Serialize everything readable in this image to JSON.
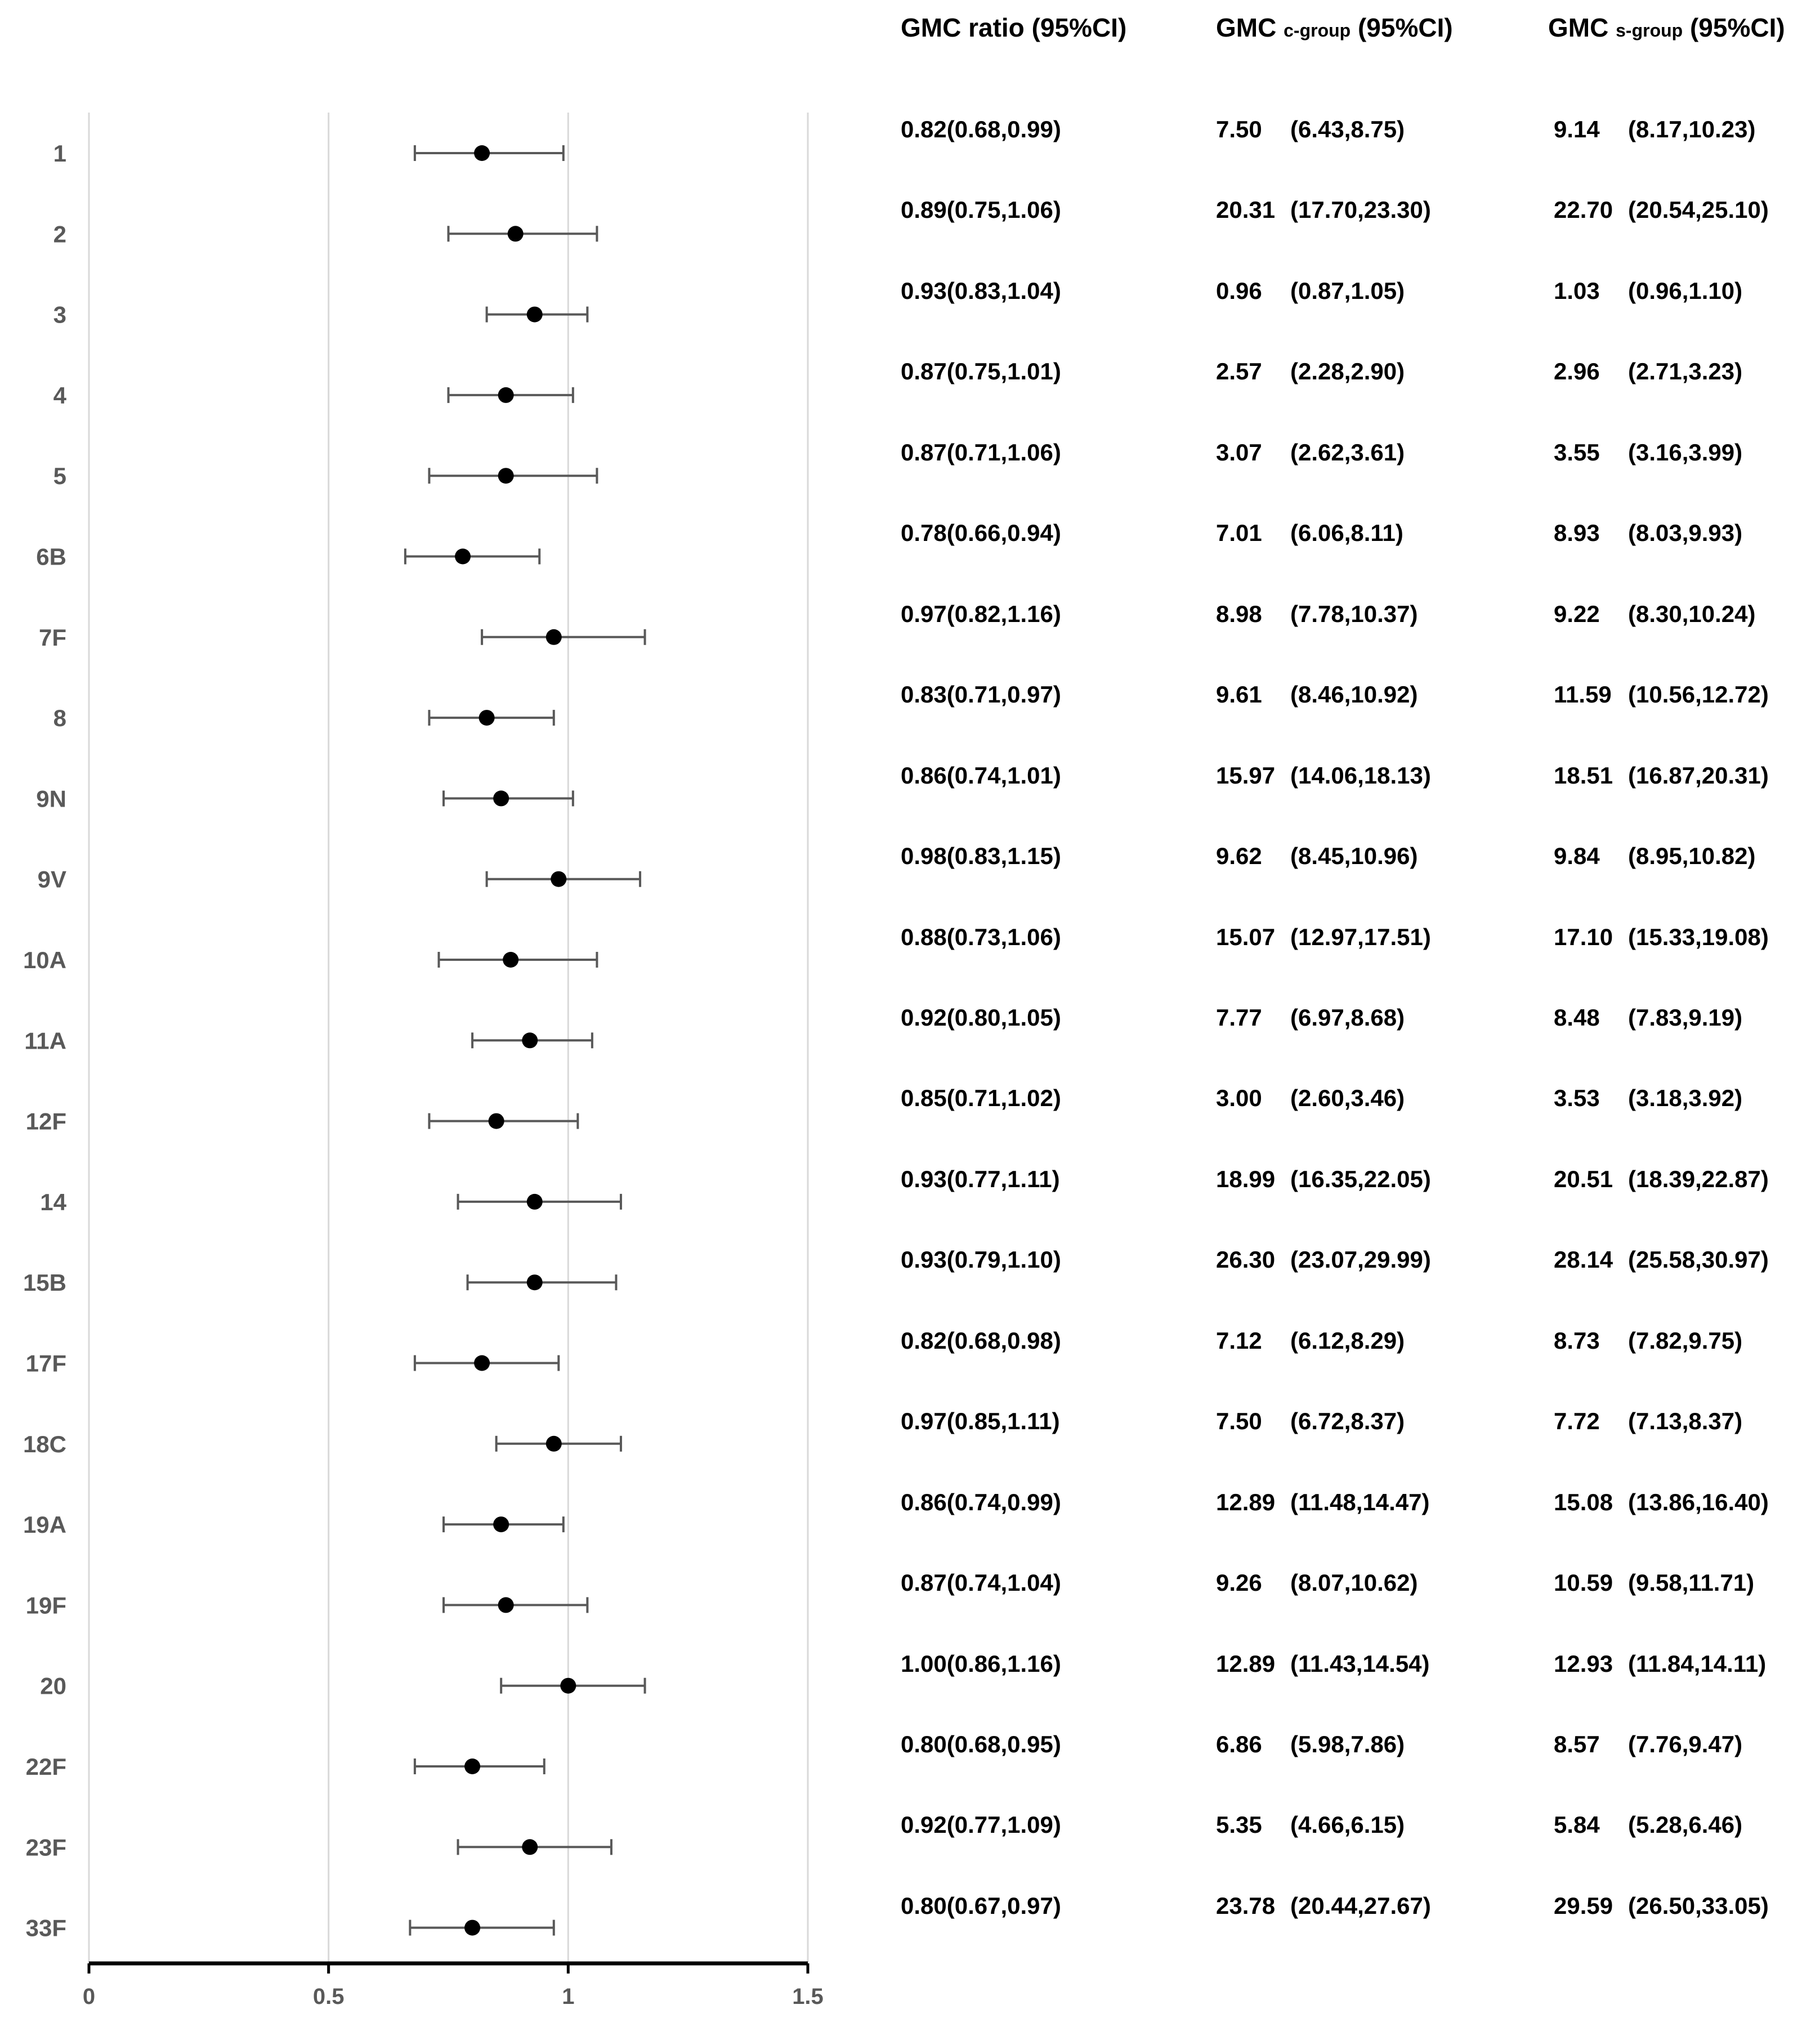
{
  "headers": {
    "ratio": {
      "main": "GMC ratio",
      "sub": "",
      "ci": "(95%CI)"
    },
    "cgroup": {
      "main": "GMC",
      "sub": "c-group",
      "ci": "(95%CI)"
    },
    "sgroup": {
      "main": "GMC",
      "sub": "s-group",
      "ci": "(95%CI)"
    }
  },
  "chart_data": {
    "type": "scatter",
    "subtype": "forest-plot",
    "categories": [
      "1",
      "2",
      "3",
      "4",
      "5",
      "6B",
      "7F",
      "8",
      "9N",
      "9V",
      "10A",
      "11A",
      "12F",
      "14",
      "15B",
      "17F",
      "18C",
      "19A",
      "19F",
      "20",
      "22F",
      "23F",
      "33F"
    ],
    "series": [
      {
        "values": [
          0.82,
          0.89,
          0.93,
          0.87,
          0.87,
          0.78,
          0.97,
          0.83,
          0.86,
          0.98,
          0.88,
          0.92,
          0.85,
          0.93,
          0.93,
          0.82,
          0.97,
          0.86,
          0.87,
          1.0,
          0.8,
          0.92,
          0.8
        ],
        "lower": [
          0.68,
          0.75,
          0.83,
          0.75,
          0.71,
          0.66,
          0.82,
          0.71,
          0.74,
          0.83,
          0.73,
          0.8,
          0.71,
          0.77,
          0.79,
          0.68,
          0.85,
          0.74,
          0.74,
          0.86,
          0.68,
          0.77,
          0.67
        ],
        "upper": [
          0.99,
          1.06,
          1.04,
          1.01,
          1.06,
          0.94,
          1.16,
          0.97,
          1.01,
          1.15,
          1.06,
          1.05,
          1.02,
          1.11,
          1.1,
          0.98,
          1.11,
          0.99,
          1.04,
          1.16,
          0.95,
          1.09,
          0.97
        ]
      }
    ],
    "xlim": [
      0,
      1.5
    ],
    "xticks": [
      "0",
      "0.5",
      "1",
      "1.5"
    ],
    "xtick_values": [
      0,
      0.5,
      1,
      1.5
    ],
    "grid": "vertical",
    "legend": "none"
  },
  "table": {
    "rows": [
      {
        "ratio": "0.82(0.68,0.99)",
        "c_val": "7.50",
        "c_ci": "(6.43,8.75)",
        "s_val": "9.14",
        "s_ci": "(8.17,10.23)"
      },
      {
        "ratio": "0.89(0.75,1.06)",
        "c_val": "20.31",
        "c_ci": "(17.70,23.30)",
        "s_val": "22.70",
        "s_ci": "(20.54,25.10)"
      },
      {
        "ratio": "0.93(0.83,1.04)",
        "c_val": "0.96",
        "c_ci": "(0.87,1.05)",
        "s_val": "1.03",
        "s_ci": "(0.96,1.10)"
      },
      {
        "ratio": "0.87(0.75,1.01)",
        "c_val": "2.57",
        "c_ci": "(2.28,2.90)",
        "s_val": "2.96",
        "s_ci": "(2.71,3.23)"
      },
      {
        "ratio": "0.87(0.71,1.06)",
        "c_val": "3.07",
        "c_ci": "(2.62,3.61)",
        "s_val": "3.55",
        "s_ci": "(3.16,3.99)"
      },
      {
        "ratio": "0.78(0.66,0.94)",
        "c_val": "7.01",
        "c_ci": "(6.06,8.11)",
        "s_val": "8.93",
        "s_ci": "(8.03,9.93)"
      },
      {
        "ratio": "0.97(0.82,1.16)",
        "c_val": "8.98",
        "c_ci": "(7.78,10.37)",
        "s_val": "9.22",
        "s_ci": "(8.30,10.24)"
      },
      {
        "ratio": "0.83(0.71,0.97)",
        "c_val": "9.61",
        "c_ci": "(8.46,10.92)",
        "s_val": "11.59",
        "s_ci": "(10.56,12.72)"
      },
      {
        "ratio": "0.86(0.74,1.01)",
        "c_val": "15.97",
        "c_ci": "(14.06,18.13)",
        "s_val": "18.51",
        "s_ci": "(16.87,20.31)"
      },
      {
        "ratio": "0.98(0.83,1.15)",
        "c_val": "9.62",
        "c_ci": "(8.45,10.96)",
        "s_val": "9.84",
        "s_ci": "(8.95,10.82)"
      },
      {
        "ratio": "0.88(0.73,1.06)",
        "c_val": "15.07",
        "c_ci": "(12.97,17.51)",
        "s_val": "17.10",
        "s_ci": "(15.33,19.08)"
      },
      {
        "ratio": "0.92(0.80,1.05)",
        "c_val": "7.77",
        "c_ci": "(6.97,8.68)",
        "s_val": "8.48",
        "s_ci": "(7.83,9.19)"
      },
      {
        "ratio": "0.85(0.71,1.02)",
        "c_val": "3.00",
        "c_ci": "(2.60,3.46)",
        "s_val": "3.53",
        "s_ci": "(3.18,3.92)"
      },
      {
        "ratio": "0.93(0.77,1.11)",
        "c_val": "18.99",
        "c_ci": "(16.35,22.05)",
        "s_val": "20.51",
        "s_ci": "(18.39,22.87)"
      },
      {
        "ratio": "0.93(0.79,1.10)",
        "c_val": "26.30",
        "c_ci": "(23.07,29.99)",
        "s_val": "28.14",
        "s_ci": "(25.58,30.97)"
      },
      {
        "ratio": "0.82(0.68,0.98)",
        "c_val": "7.12",
        "c_ci": "(6.12,8.29)",
        "s_val": "8.73",
        "s_ci": "(7.82,9.75)"
      },
      {
        "ratio": "0.97(0.85,1.11)",
        "c_val": "7.50",
        "c_ci": "(6.72,8.37)",
        "s_val": "7.72",
        "s_ci": "(7.13,8.37)"
      },
      {
        "ratio": "0.86(0.74,0.99)",
        "c_val": "12.89",
        "c_ci": "(11.48,14.47)",
        "s_val": "15.08",
        "s_ci": "(13.86,16.40)"
      },
      {
        "ratio": "0.87(0.74,1.04)",
        "c_val": "9.26",
        "c_ci": "(8.07,10.62)",
        "s_val": "10.59",
        "s_ci": "(9.58,11.71)"
      },
      {
        "ratio": "1.00(0.86,1.16)",
        "c_val": "12.89",
        "c_ci": "(11.43,14.54)",
        "s_val": "12.93",
        "s_ci": "(11.84,14.11)"
      },
      {
        "ratio": "0.80(0.68,0.95)",
        "c_val": "6.86",
        "c_ci": "(5.98,7.86)",
        "s_val": "8.57",
        "s_ci": "(7.76,9.47)"
      },
      {
        "ratio": "0.92(0.77,1.09)",
        "c_val": "5.35",
        "c_ci": "(4.66,6.15)",
        "s_val": "5.84",
        "s_ci": "(5.28,6.46)"
      },
      {
        "ratio": "0.80(0.67,0.97)",
        "c_val": "23.78",
        "c_ci": "(20.44,27.67)",
        "s_val": "29.59",
        "s_ci": "(26.50,33.05)"
      }
    ]
  }
}
